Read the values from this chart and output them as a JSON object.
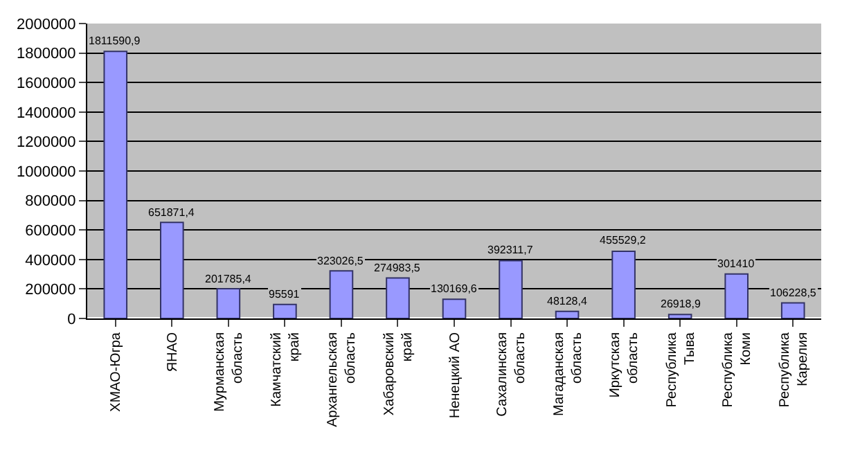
{
  "chart_data": {
    "type": "bar",
    "categories": [
      "ХМАО-Югра",
      "ЯНАО",
      "Мурманская\nобласть",
      "Камчатский\nкрай",
      "Архангельская\nобласть",
      "Хабаровский\nкрай",
      "Ненецкий АО",
      "Сахалинская\nобласть",
      "Магаданская\nобласть",
      "Иркутская\nобласть",
      "Республика\nТыва",
      "Республика\nКоми",
      "Республика\nКарелия"
    ],
    "values": [
      1811590.9,
      651871.4,
      201785.4,
      95591,
      323026.5,
      274983.5,
      130169.6,
      392311.7,
      48128.4,
      455529.2,
      26918.9,
      301410,
      106228.5
    ],
    "value_labels": [
      "1811590,9",
      "651871,4",
      "201785,4",
      "95591",
      "323026,5",
      "274983,5",
      "130169,6",
      "392311,7",
      "48128,4",
      "455529,2",
      "26918,9",
      "301410",
      "106228,5"
    ],
    "color": "#9999ff",
    "ylim": [
      0,
      2000000
    ],
    "yticks": [
      0,
      200000,
      400000,
      600000,
      800000,
      1000000,
      1200000,
      1400000,
      1600000,
      1800000,
      2000000
    ],
    "grid": "y",
    "legend": false
  }
}
